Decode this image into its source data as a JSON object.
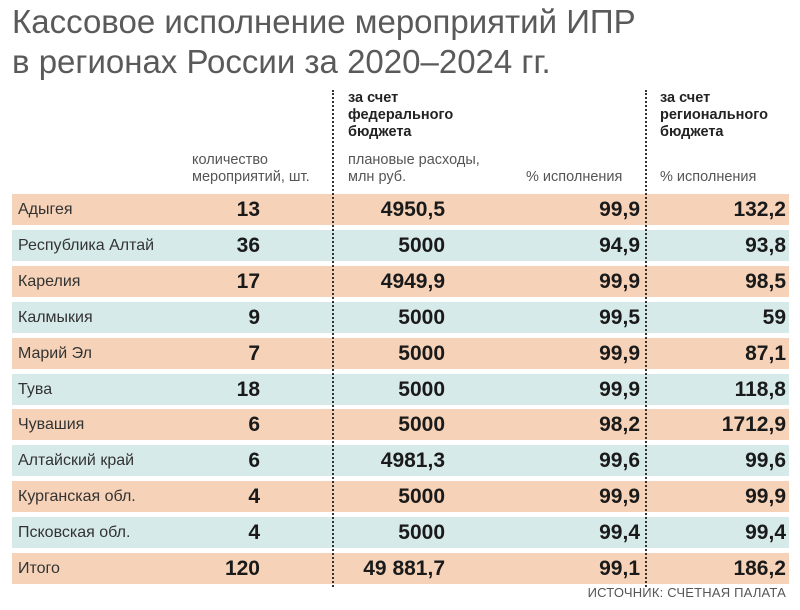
{
  "chart_data": {
    "type": "table",
    "title_lines": [
      "Кассовое исполнение мероприятий ИПР",
      "в регионах России за 2020–2024 гг."
    ],
    "group_headers": {
      "federal": [
        "за счет",
        "федерального",
        "бюджета"
      ],
      "regional": [
        "за счет",
        "регионального",
        "бюджета"
      ]
    },
    "column_headers": {
      "count": [
        "количество",
        "мероприятий, шт."
      ],
      "plan": [
        "плановые расходы,",
        "млн руб."
      ],
      "federal_pct": "% исполнения",
      "regional_pct": "% исполнения"
    },
    "rows": [
      {
        "region": "Адыгея",
        "count": "13",
        "plan": "4950,5",
        "federal_pct": "99,9",
        "regional_pct": "132,2"
      },
      {
        "region": "Республика Алтай",
        "count": "36",
        "plan": "5000",
        "federal_pct": "94,9",
        "regional_pct": "93,8"
      },
      {
        "region": "Карелия",
        "count": "17",
        "plan": "4949,9",
        "federal_pct": "99,9",
        "regional_pct": "98,5"
      },
      {
        "region": "Калмыкия",
        "count": "9",
        "plan": "5000",
        "federal_pct": "99,5",
        "regional_pct": "59"
      },
      {
        "region": "Марий Эл",
        "count": "7",
        "plan": "5000",
        "federal_pct": "99,9",
        "regional_pct": "87,1"
      },
      {
        "region": "Тува",
        "count": "18",
        "plan": "5000",
        "federal_pct": "99,9",
        "regional_pct": "118,8"
      },
      {
        "region": "Чувашия",
        "count": "6",
        "plan": "5000",
        "federal_pct": "98,2",
        "regional_pct": "1712,9"
      },
      {
        "region": "Алтайский край",
        "count": "6",
        "plan": "4981,3",
        "federal_pct": "99,6",
        "regional_pct": "99,6"
      },
      {
        "region": "Курганская обл.",
        "count": "4",
        "plan": "5000",
        "federal_pct": "99,9",
        "regional_pct": "99,9"
      },
      {
        "region": "Псковская обл.",
        "count": "4",
        "plan": "5000",
        "federal_pct": "99,4",
        "regional_pct": "99,4"
      },
      {
        "region": "Итого",
        "count": "120",
        "plan": "49 881,7",
        "federal_pct": "99,1",
        "regional_pct": "186,2"
      }
    ],
    "row_colors": [
      "#f6d3b8",
      "#d6ebe9"
    ],
    "source": "ИСТОЧНИК: СЧЕТНАЯ ПАЛАТА"
  }
}
